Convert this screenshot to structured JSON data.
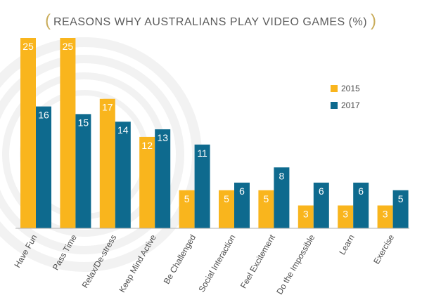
{
  "chart_data": {
    "type": "bar",
    "title": "REASONS WHY AUSTRALIANS PLAY VIDEO GAMES (%)",
    "xlabel": "",
    "ylabel": "",
    "ylim": [
      0,
      25
    ],
    "grid": false,
    "legend_position": "right",
    "categories": [
      "Have Fun",
      "Pass Time",
      "Relax/De-stress",
      "Keep Mind Active",
      "Be Challenged",
      "Social Interaction",
      "Feel Excitement",
      "Do the Impossible",
      "Learn",
      "Exercise"
    ],
    "series": [
      {
        "name": "2015",
        "color": "#f9b51d",
        "values": [
          25,
          25,
          17,
          12,
          5,
          5,
          5,
          3,
          3,
          3
        ]
      },
      {
        "name": "2017",
        "color": "#0e6a8e",
        "values": [
          16,
          15,
          14,
          13,
          11,
          6,
          8,
          6,
          6,
          5
        ]
      }
    ]
  },
  "colors": {
    "title": "#5c5c5c",
    "title_paren": "#c9ac5a",
    "axis": "#b0b0b0",
    "category_label": "#4d4d4d",
    "value_label": "#ffffff",
    "watermark": "#f2f2f2"
  }
}
